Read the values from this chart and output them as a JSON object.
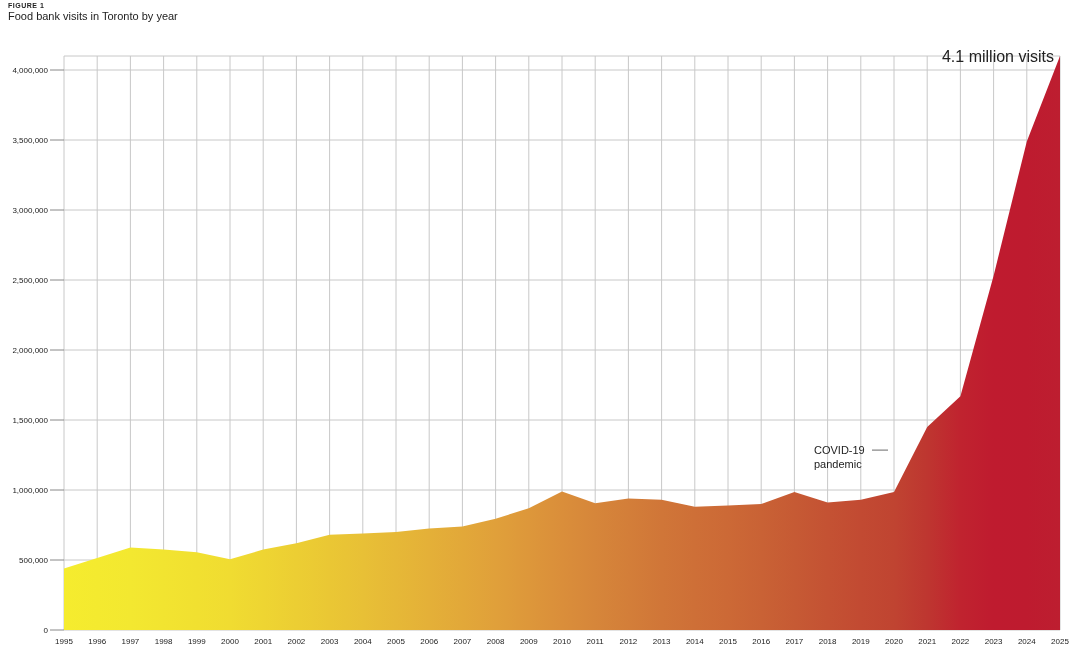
{
  "chart_data": {
    "type": "area",
    "subtitle": "FIGURE 1",
    "title": "Food bank visits in Toronto by year",
    "categories": [
      "1995",
      "1996",
      "1997",
      "1998",
      "1999",
      "2000",
      "2001",
      "2002",
      "2003",
      "2004",
      "2005",
      "2006",
      "2007",
      "2008",
      "2009",
      "2010",
      "2011",
      "2012",
      "2013",
      "2014",
      "2015",
      "2016",
      "2017",
      "2018",
      "2019",
      "2020",
      "2021",
      "2022",
      "2023",
      "2024",
      "2025"
    ],
    "series": [
      {
        "values": [
          440000,
          515000,
          590000,
          575000,
          555000,
          505000,
          575000,
          620000,
          680000,
          690000,
          700000,
          725000,
          740000,
          795000,
          870000,
          990000,
          905000,
          940000,
          930000,
          880000,
          890000,
          900000,
          985000,
          910000,
          930000,
          985000,
          1450000,
          1670000,
          2530000,
          3490000,
          4100000
        ],
        "colors": [
          "#f5ec2e",
          "#f4ea2f",
          "#f3e830",
          "#f2e430",
          "#f1e030",
          "#f0dc31",
          "#eed532",
          "#ecce33",
          "#eac734",
          "#e8c036",
          "#e6b837",
          "#e4b038",
          "#e2a839",
          "#e0a03a",
          "#dd973a",
          "#da8e3a",
          "#d6863a",
          "#d37e39",
          "#d07638",
          "#ce6f37",
          "#cc6936",
          "#c96235",
          "#c65a34",
          "#c45233",
          "#c24a32",
          "#c04431",
          "#be3630",
          "#c0232f",
          "#bf1b2f",
          "#be1b2f",
          "#bd1e30"
        ]
      }
    ],
    "ylim": [
      0,
      4100000
    ],
    "yticks": [
      0,
      {
        "value": 500000,
        "label": "500,000"
      },
      {
        "value": 1000000,
        "label": "1,000,000"
      },
      {
        "value": 1500000,
        "label": "1,500,000"
      },
      {
        "value": 2000000,
        "label": "2,000,000"
      },
      {
        "value": 2500000,
        "label": "2,500,000"
      },
      {
        "value": 3000000,
        "label": "3,000,000"
      },
      {
        "value": 3500000,
        "label": "3,500,000"
      },
      {
        "value": 4000000,
        "label": "4,000,000"
      }
    ],
    "grid": true,
    "annotations": [
      {
        "text": "4.1 million visits",
        "x": "2025",
        "y": 4100000
      },
      "COVID-19\npandemic"
    ]
  }
}
